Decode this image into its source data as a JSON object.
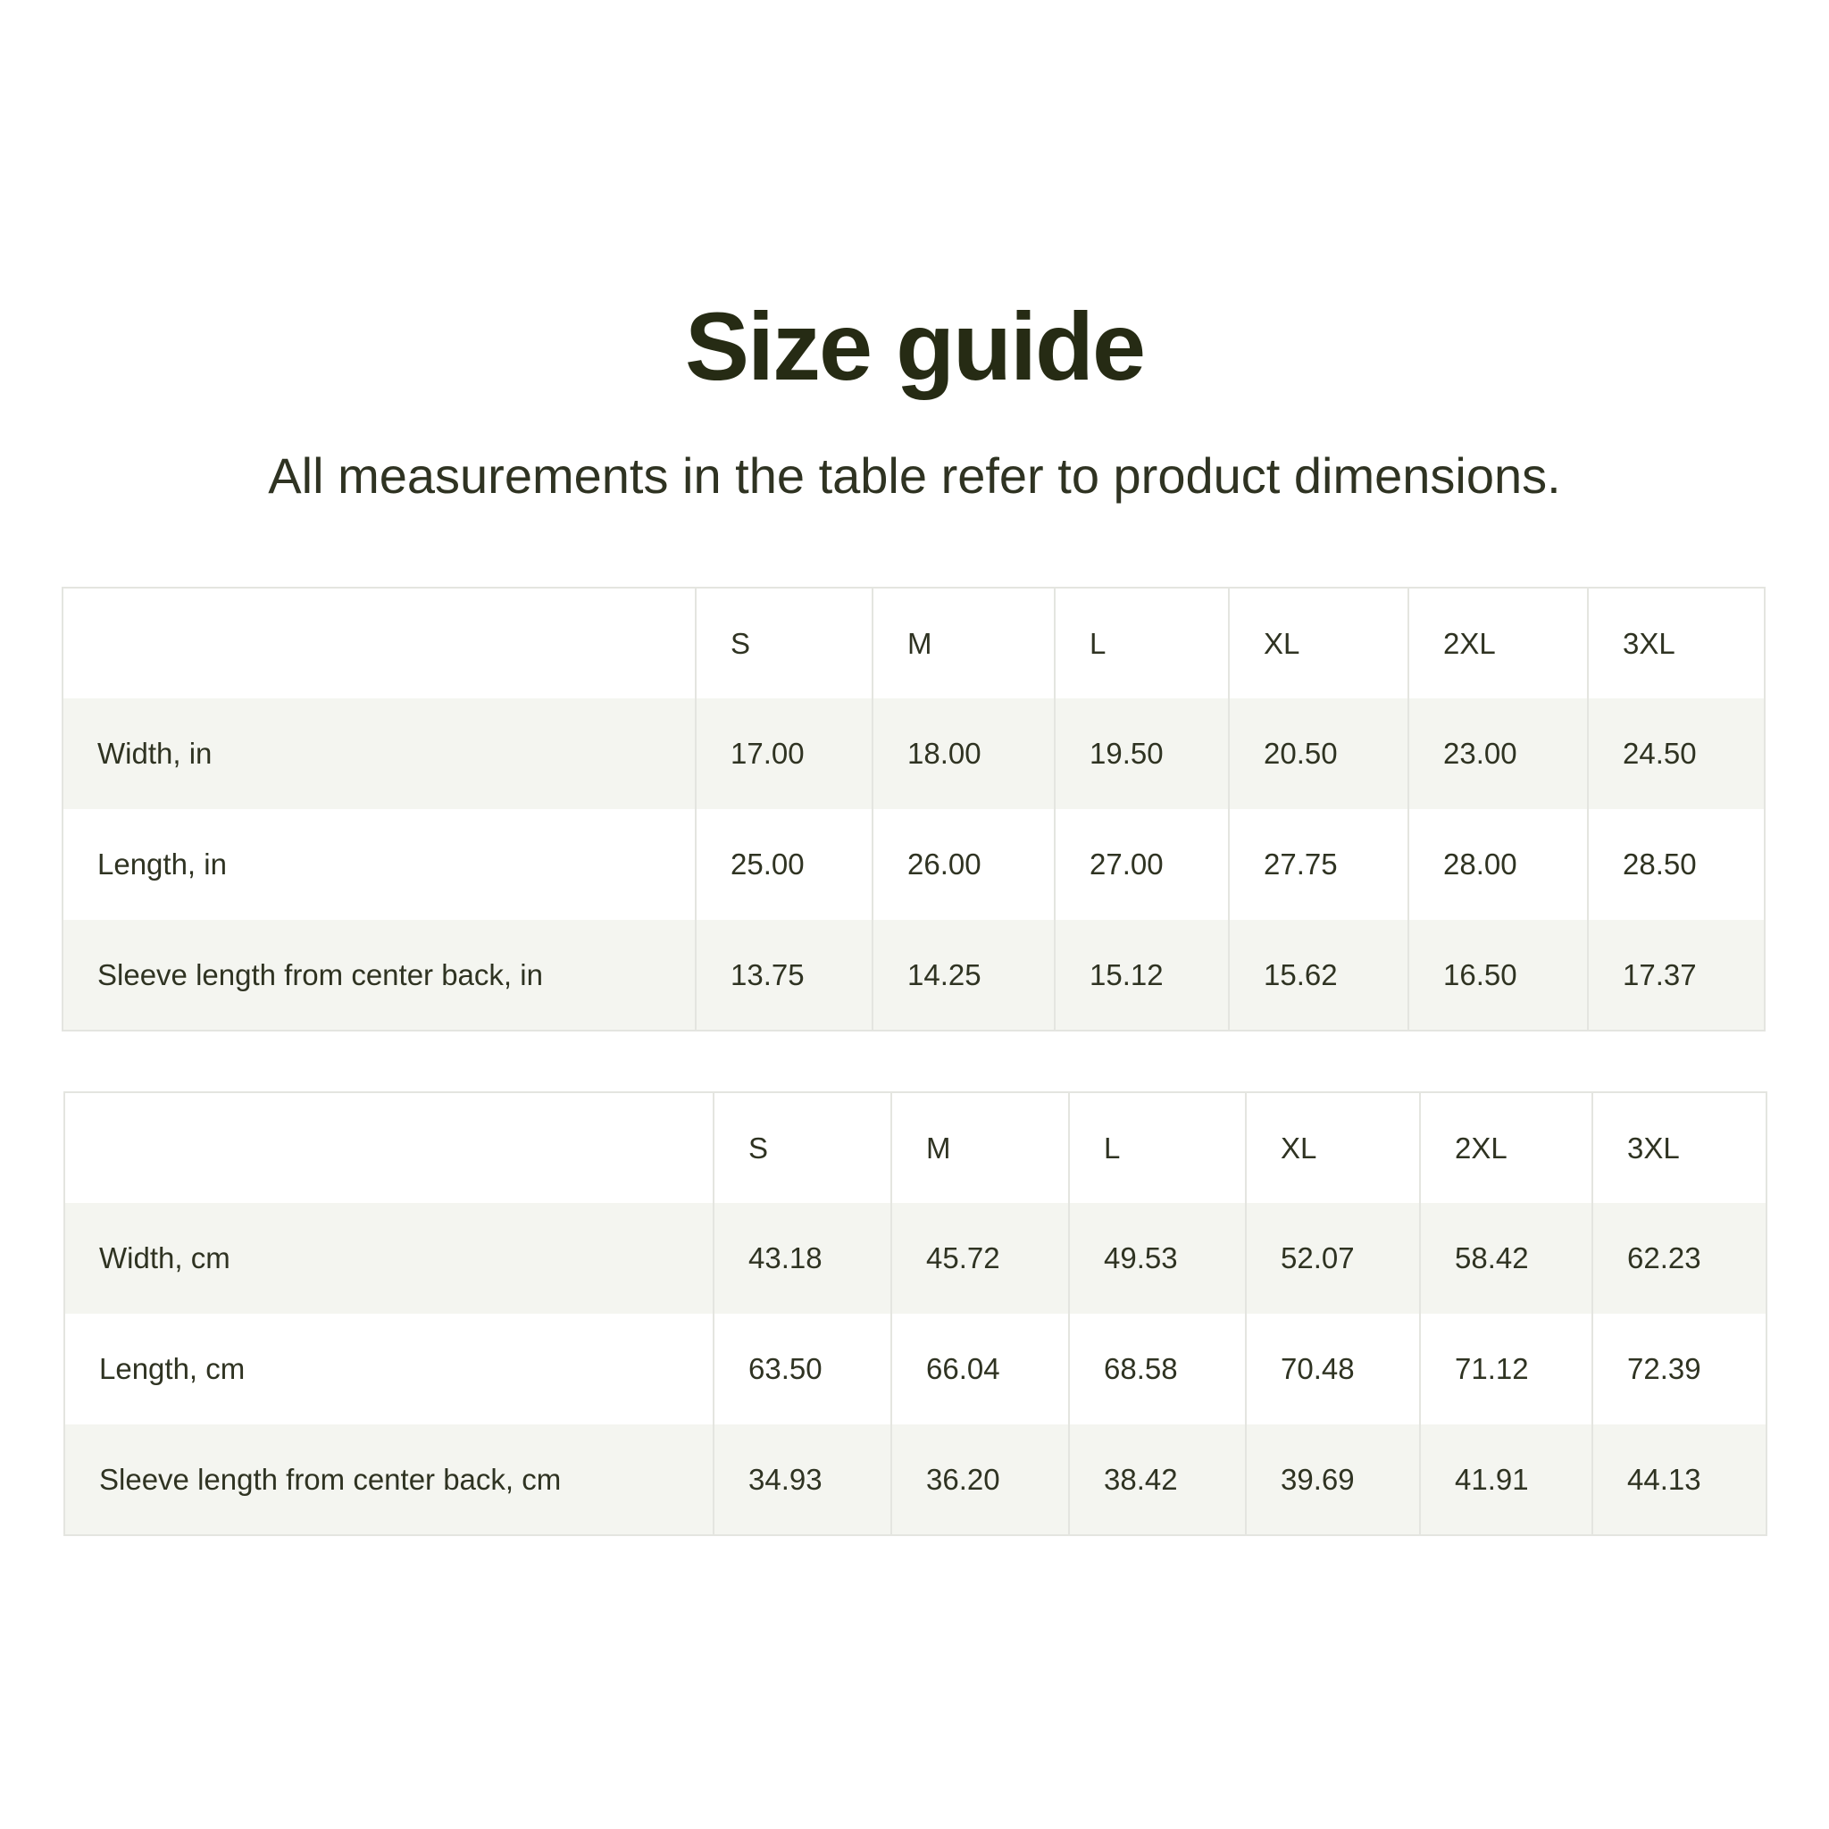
{
  "title": "Size guide",
  "subtitle": "All measurements in the table refer to product dimensions.",
  "tables": [
    {
      "headers": [
        "",
        "S",
        "M",
        "L",
        "XL",
        "2XL",
        "3XL"
      ],
      "rows": [
        {
          "label": "Width, in",
          "values": [
            "17.00",
            "18.00",
            "19.50",
            "20.50",
            "23.00",
            "24.50"
          ]
        },
        {
          "label": "Length, in",
          "values": [
            "25.00",
            "26.00",
            "27.00",
            "27.75",
            "28.00",
            "28.50"
          ]
        },
        {
          "label": "Sleeve length from center back, in",
          "values": [
            "13.75",
            "14.25",
            "15.12",
            "15.62",
            "16.50",
            "17.37"
          ]
        }
      ]
    },
    {
      "headers": [
        "",
        "S",
        "M",
        "L",
        "XL",
        "2XL",
        "3XL"
      ],
      "rows": [
        {
          "label": "Width, cm",
          "values": [
            "43.18",
            "45.72",
            "49.53",
            "52.07",
            "58.42",
            "62.23"
          ]
        },
        {
          "label": "Length, cm",
          "values": [
            "63.50",
            "66.04",
            "68.58",
            "70.48",
            "71.12",
            "72.39"
          ]
        },
        {
          "label": "Sleeve length from center back, cm",
          "values": [
            "34.93",
            "36.20",
            "38.42",
            "39.69",
            "41.91",
            "44.13"
          ]
        }
      ]
    }
  ]
}
